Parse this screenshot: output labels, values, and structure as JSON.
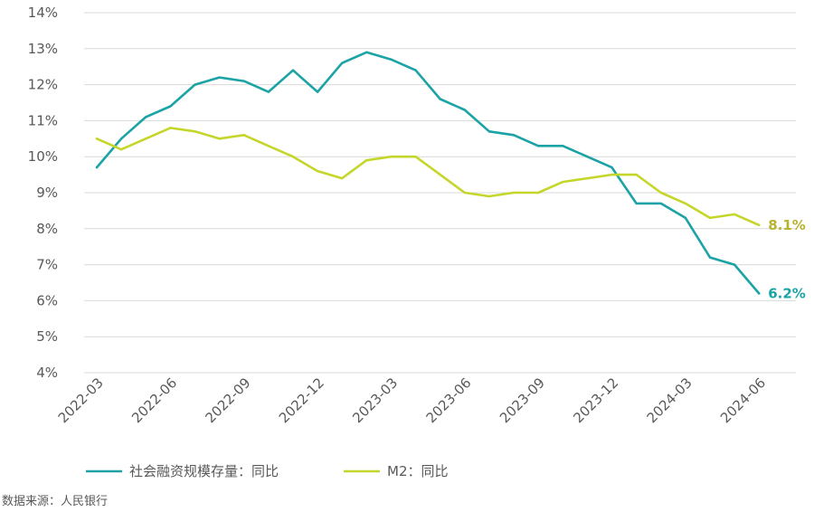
{
  "chart_data": {
    "type": "line",
    "x": [
      "2022-03",
      "2022-04",
      "2022-05",
      "2022-06",
      "2022-07",
      "2022-08",
      "2022-09",
      "2022-10",
      "2022-11",
      "2022-12",
      "2023-01",
      "2023-02",
      "2023-03",
      "2023-04",
      "2023-05",
      "2023-06",
      "2023-07",
      "2023-08",
      "2023-09",
      "2023-10",
      "2023-11",
      "2023-12",
      "2024-01",
      "2024-02",
      "2024-03",
      "2024-04",
      "2024-05",
      "2024-06"
    ],
    "x_tick_labels": [
      "2022-03",
      "2022-06",
      "2022-09",
      "2022-12",
      "2023-03",
      "2023-06",
      "2023-09",
      "2023-12",
      "2024-03",
      "2024-06"
    ],
    "y_tick_labels": [
      "4%",
      "5%",
      "6%",
      "7%",
      "8%",
      "9%",
      "10%",
      "11%",
      "12%",
      "13%",
      "14%"
    ],
    "ylim": [
      4,
      14
    ],
    "grid": true,
    "legend_position": "bottom",
    "series": [
      {
        "name": "社会融资规模存量：同比",
        "color": "#1ba3a6",
        "values": [
          9.7,
          10.5,
          11.1,
          11.4,
          12.0,
          12.2,
          12.1,
          11.8,
          12.4,
          11.8,
          12.6,
          12.9,
          12.7,
          12.4,
          11.6,
          11.3,
          10.7,
          10.6,
          10.3,
          10.3,
          10.0,
          9.7,
          8.7,
          8.7,
          8.3,
          7.2,
          7.0,
          6.2
        ],
        "end_label": "6.2%"
      },
      {
        "name": "M2：同比",
        "color": "#c5d62b",
        "label_color": "#b7b32f",
        "values": [
          10.5,
          10.2,
          10.5,
          10.8,
          10.7,
          10.5,
          10.6,
          10.3,
          10.0,
          9.6,
          9.4,
          9.9,
          10.0,
          10.0,
          9.5,
          9.0,
          8.9,
          9.0,
          9.0,
          9.3,
          9.4,
          9.5,
          9.5,
          9.0,
          8.7,
          8.3,
          8.4,
          8.1
        ],
        "end_label": "8.1%"
      }
    ]
  },
  "source_text": "数据来源：人民银行"
}
